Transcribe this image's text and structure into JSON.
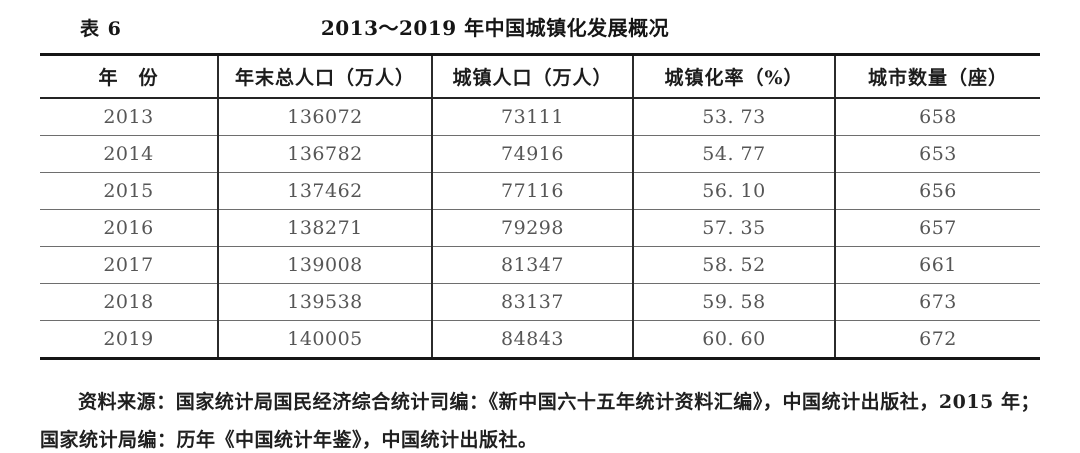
{
  "page": {
    "table_label": "表 6",
    "title": "2013～2019 年中国城镇化发展概况"
  },
  "table": {
    "headers": [
      "年　份",
      "年末总人口（万人）",
      "城镇人口（万人）",
      "城镇化率（%）",
      "城市数量（座）"
    ],
    "rows": [
      [
        "2013",
        "136072",
        "73111",
        "53. 73",
        "658"
      ],
      [
        "2014",
        "136782",
        "74916",
        "54. 77",
        "653"
      ],
      [
        "2015",
        "137462",
        "77116",
        "56. 10",
        "656"
      ],
      [
        "2016",
        "138271",
        "79298",
        "57. 35",
        "657"
      ],
      [
        "2017",
        "139008",
        "81347",
        "58. 52",
        "661"
      ],
      [
        "2018",
        "139538",
        "83137",
        "59. 58",
        "673"
      ],
      [
        "2019",
        "140005",
        "84843",
        "60. 60",
        "672"
      ]
    ]
  },
  "footer": {
    "source": "资料来源：国家统计局国民经济综合统计司编：《新中国六十五年统计资料汇编》，中国统计出版社，2015 年；国家统计局编：历年《中国统计年鉴》，中国统计出版社。"
  }
}
